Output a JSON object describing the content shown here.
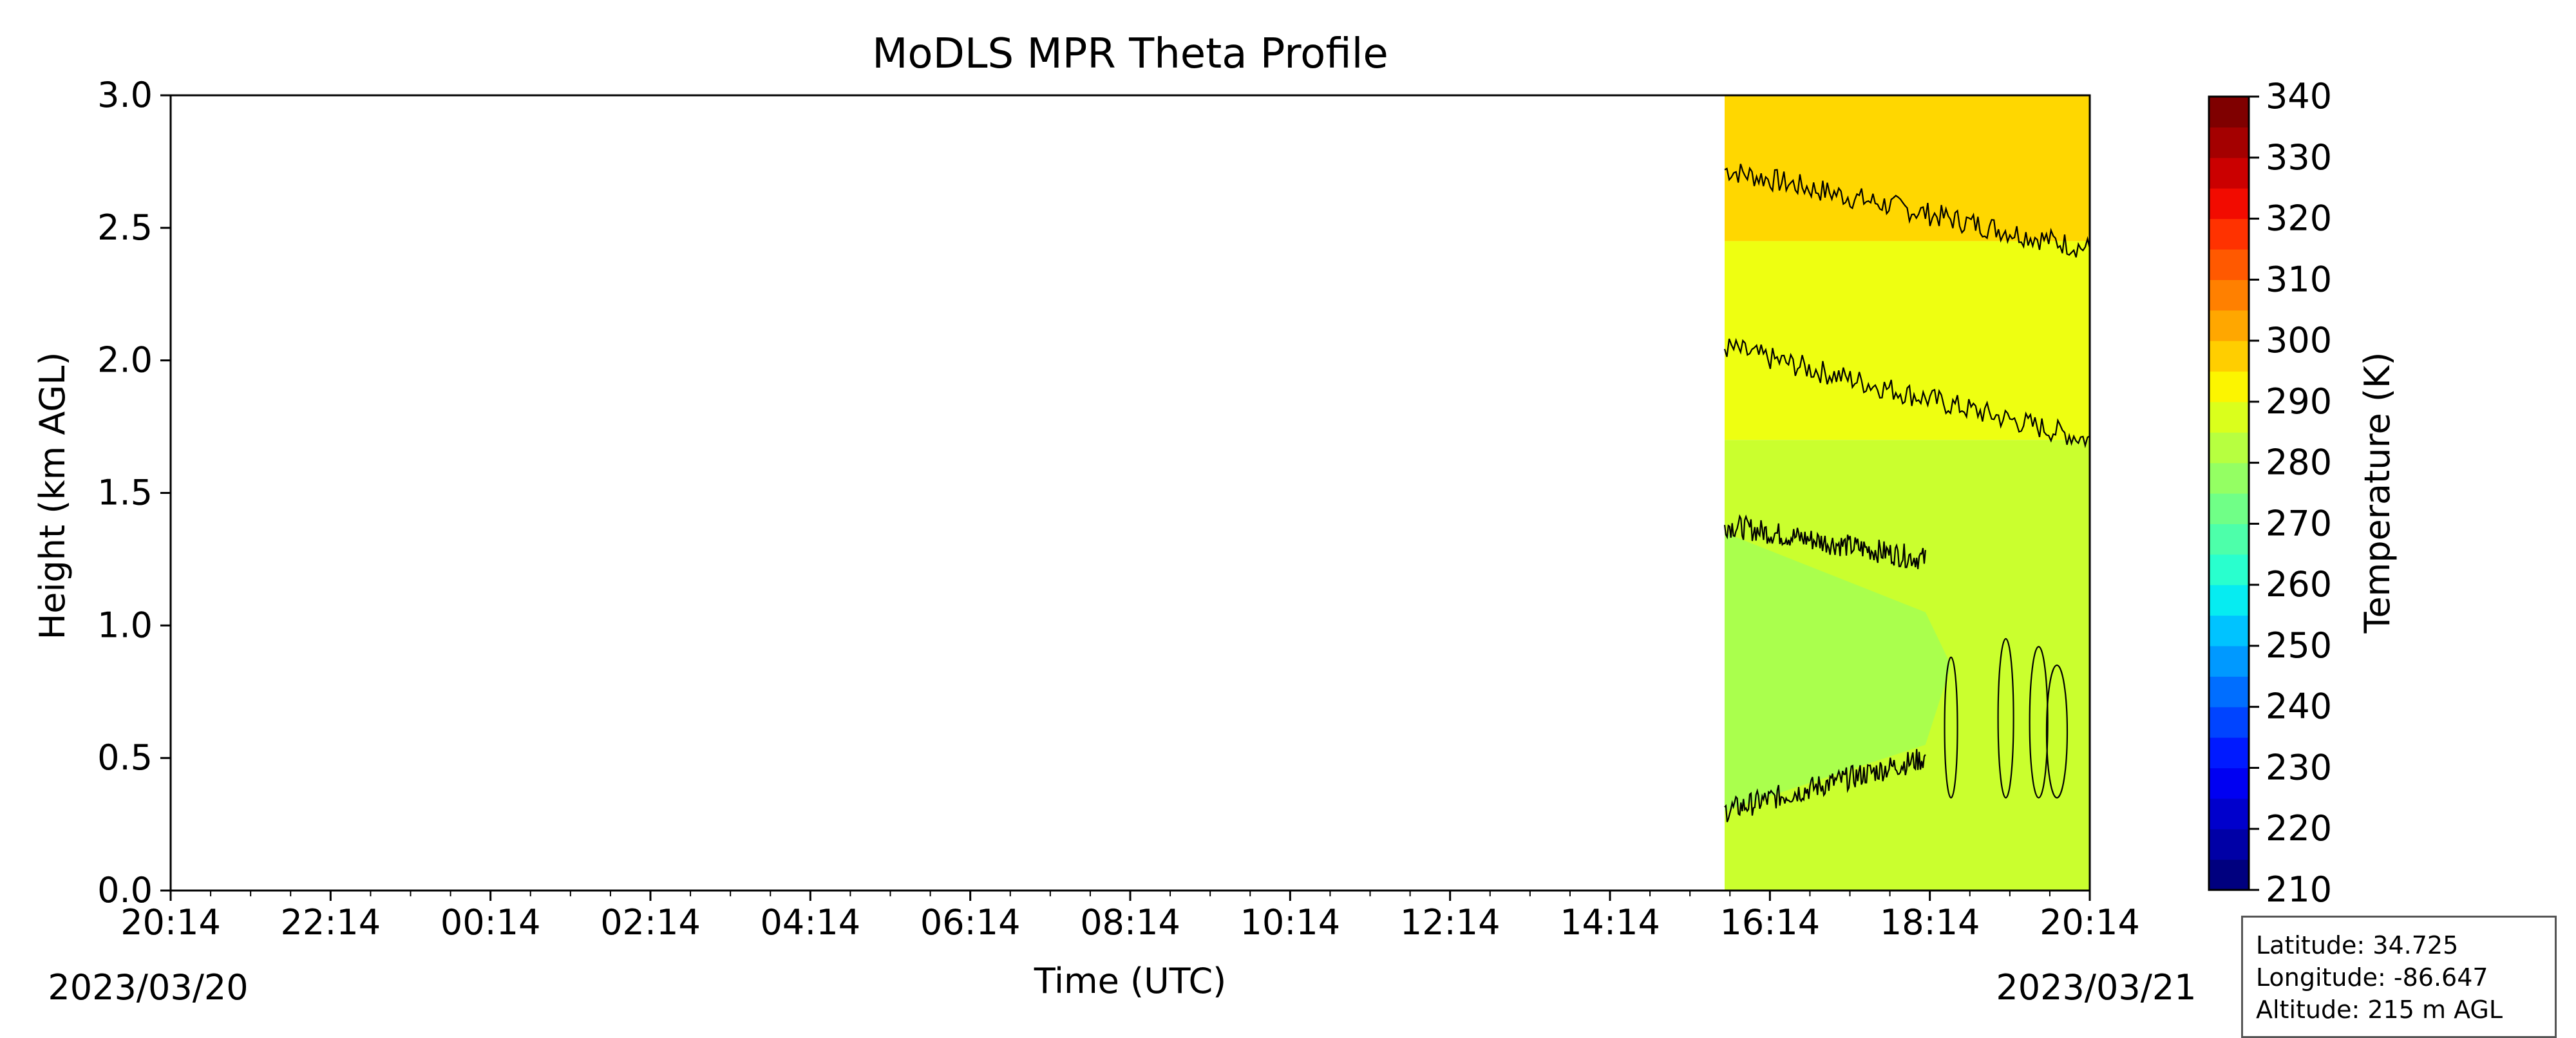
{
  "chart_data": {
    "type": "heatmap",
    "title": "MoDLS MPR Theta Profile",
    "xlabel": "Time (UTC)",
    "ylabel": "Height (km AGL)",
    "x_ticks": [
      "20:14",
      "22:14",
      "00:14",
      "02:14",
      "04:14",
      "06:14",
      "08:14",
      "10:14",
      "12:14",
      "14:14",
      "16:14",
      "18:14",
      "20:14"
    ],
    "x_start_date": "2023/03/20",
    "x_end_date": "2023/03/21",
    "y_ticks": [
      "0.0",
      "0.5",
      "1.0",
      "1.5",
      "2.0",
      "2.5",
      "3.0"
    ],
    "ylim": [
      0,
      3
    ],
    "data_time_range": [
      "15:40",
      "20:14"
    ],
    "contour_levels_K": [
      280,
      290,
      300
    ],
    "regions": [
      {
        "height_range_km": [
          0.3,
          1.35
        ],
        "theta_range_K": [
          280,
          285
        ],
        "color": "#aaff4d"
      },
      {
        "height_range_km": [
          0.0,
          1.7
        ],
        "theta_range_K": [
          285,
          290
        ],
        "color": "#caff2e"
      },
      {
        "height_range_km": [
          1.7,
          2.45
        ],
        "theta_range_K": [
          290,
          295
        ],
        "color": "#eeff11"
      },
      {
        "height_range_km": [
          2.45,
          3.0
        ],
        "theta_range_K": [
          295,
          300
        ],
        "color": "#ffd700"
      }
    ],
    "contours": [
      {
        "name": "upper",
        "height_km_start": 2.72,
        "height_km_end": 2.42
      },
      {
        "name": "middle",
        "height_km_start": 2.05,
        "height_km_end": 1.7
      },
      {
        "name": "lower-top",
        "height_km_start": 1.38,
        "height_km_end": 1.25
      },
      {
        "name": "lower-bottom",
        "height_km_start": 0.3,
        "height_km_end": 0.5
      }
    ],
    "colorbar": {
      "label": "Temperature (K)",
      "min": 210,
      "max": 340,
      "ticks": [
        "340",
        "330",
        "320",
        "310",
        "300",
        "290",
        "280",
        "270",
        "260",
        "250",
        "240",
        "230",
        "220",
        "210"
      ],
      "colors": [
        "#00007f",
        "#0000a6",
        "#0000cc",
        "#0000f2",
        "#001aff",
        "#0044ff",
        "#006eff",
        "#0099ff",
        "#00c3ff",
        "#06ecf1",
        "#29ffce",
        "#4dffaa",
        "#70ff87",
        "#94ff63",
        "#b7ff40",
        "#daff1c",
        "#fcf500",
        "#ffce00",
        "#ffa700",
        "#ff8000",
        "#ff5900",
        "#ff3200",
        "#f20b00",
        "#cb0000",
        "#a40000",
        "#7f0000"
      ]
    }
  },
  "info": {
    "latitude": "Latitude: 34.725",
    "longitude": "Longitude: -86.647",
    "altitude": "Altitude: 215 m AGL"
  }
}
